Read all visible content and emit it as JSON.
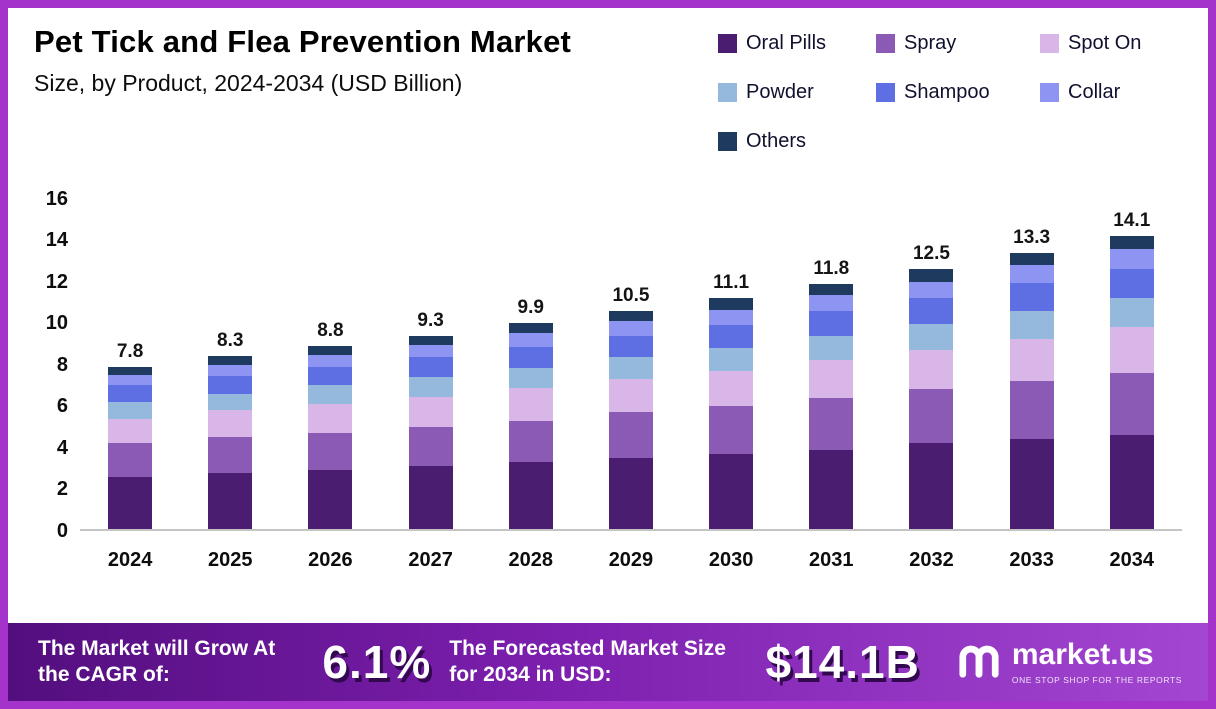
{
  "title": "Pet Tick and Flea Prevention Market",
  "subtitle": "Size, by Product, 2024-2034 (USD Billion)",
  "legend": [
    {
      "label": "Oral Pills",
      "color": "#4a1d70"
    },
    {
      "label": "Spray",
      "color": "#8a5ab4"
    },
    {
      "label": "Spot On",
      "color": "#d9b6e8"
    },
    {
      "label": "Powder",
      "color": "#94b9dc"
    },
    {
      "label": "Shampoo",
      "color": "#5d6fe3"
    },
    {
      "label": "Collar",
      "color": "#8d94f2"
    },
    {
      "label": "Others",
      "color": "#1e3a5f"
    }
  ],
  "chart_data": {
    "type": "bar",
    "stacked": true,
    "title": "Pet Tick and Flea Prevention Market Size, by Product, 2024-2034 (USD Billion)",
    "xlabel": "",
    "ylabel": "",
    "ylim": [
      0,
      16
    ],
    "yticks": [
      16,
      14,
      12,
      10,
      8,
      6,
      4,
      2,
      0
    ],
    "grid": false,
    "legend_position": "top-right",
    "categories": [
      "2024",
      "2025",
      "2026",
      "2027",
      "2028",
      "2029",
      "2030",
      "2031",
      "2032",
      "2033",
      "2034"
    ],
    "totals": [
      7.8,
      8.3,
      8.8,
      9.3,
      9.9,
      10.5,
      11.1,
      11.8,
      12.5,
      13.3,
      14.1
    ],
    "series": [
      {
        "name": "Oral Pills",
        "color": "#4a1d70",
        "values": [
          2.5,
          2.7,
          2.8,
          3.0,
          3.2,
          3.4,
          3.6,
          3.8,
          4.1,
          4.3,
          4.5
        ]
      },
      {
        "name": "Spray",
        "color": "#8a5ab4",
        "values": [
          1.6,
          1.7,
          1.8,
          1.9,
          2.0,
          2.2,
          2.3,
          2.5,
          2.6,
          2.8,
          3.0
        ]
      },
      {
        "name": "Spot On",
        "color": "#d9b6e8",
        "values": [
          1.2,
          1.3,
          1.4,
          1.45,
          1.55,
          1.6,
          1.7,
          1.8,
          1.9,
          2.05,
          2.2
        ]
      },
      {
        "name": "Powder",
        "color": "#94b9dc",
        "values": [
          0.8,
          0.8,
          0.9,
          0.95,
          1.0,
          1.05,
          1.1,
          1.2,
          1.25,
          1.35,
          1.4
        ]
      },
      {
        "name": "Shampoo",
        "color": "#5d6fe3",
        "values": [
          0.8,
          0.85,
          0.9,
          0.95,
          1.0,
          1.05,
          1.1,
          1.2,
          1.25,
          1.35,
          1.4
        ]
      },
      {
        "name": "Collar",
        "color": "#8d94f2",
        "values": [
          0.5,
          0.55,
          0.55,
          0.6,
          0.65,
          0.7,
          0.75,
          0.75,
          0.8,
          0.85,
          0.95
        ]
      },
      {
        "name": "Others",
        "color": "#1e3a5f",
        "values": [
          0.4,
          0.4,
          0.45,
          0.45,
          0.5,
          0.5,
          0.55,
          0.55,
          0.6,
          0.6,
          0.65
        ]
      }
    ]
  },
  "banner": {
    "cagr_label": "The Market will Grow At the CAGR of:",
    "cagr_value": "6.1%",
    "forecast_label": "The Forecasted Market Size for 2034 in USD:",
    "forecast_value": "$14.1B",
    "logo_text": "market.us",
    "logo_tagline": "One Stop Shop for the Reports"
  },
  "colors": {
    "frame_border": "#a333cb",
    "banner_gradient_start": "#530e7e",
    "banner_gradient_end": "#a347d2",
    "axis_line": "#c4c4c4"
  }
}
